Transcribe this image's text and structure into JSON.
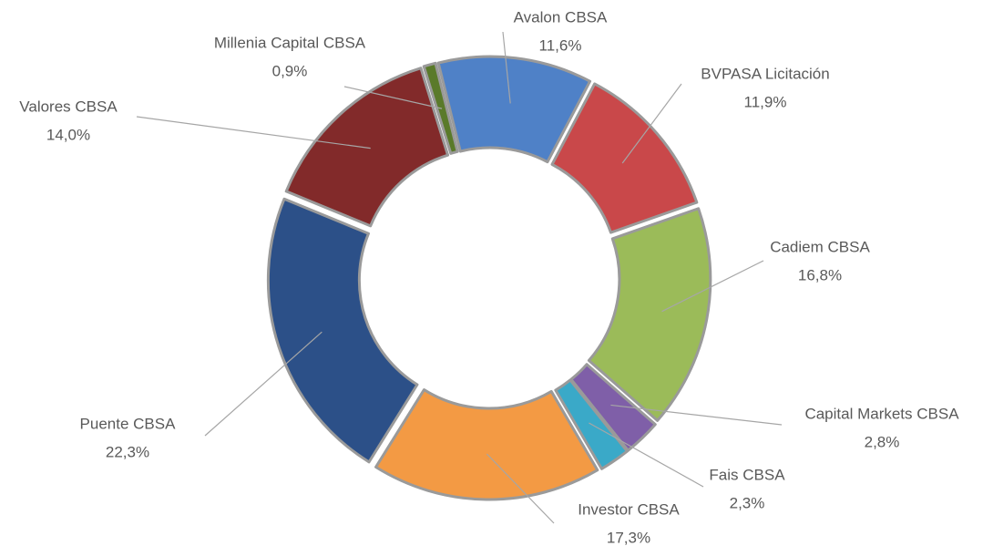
{
  "chart_data": {
    "type": "donut",
    "categories": [
      "Avalon CBSA",
      "BVPASA Licitación",
      "Cadiem CBSA",
      "Capital Markets CBSA",
      "Fais CBSA",
      "Investor CBSA",
      "Puente CBSA",
      "Valores CBSA",
      "Millenia Capital CBSA"
    ],
    "values": [
      11.6,
      11.9,
      16.8,
      2.8,
      2.3,
      17.3,
      22.3,
      14.0,
      0.9
    ],
    "value_labels": [
      "11,6%",
      "11,9%",
      "16,8%",
      "2,8%",
      "2,3%",
      "17,3%",
      "22,3%",
      "14,0%",
      "0,9%"
    ],
    "colors": [
      "#4f81c7",
      "#c9484a",
      "#9bbb59",
      "#7f5fa8",
      "#3aa9c8",
      "#f39a44",
      "#2c5088",
      "#822a2a",
      "#5a7a2a"
    ]
  }
}
